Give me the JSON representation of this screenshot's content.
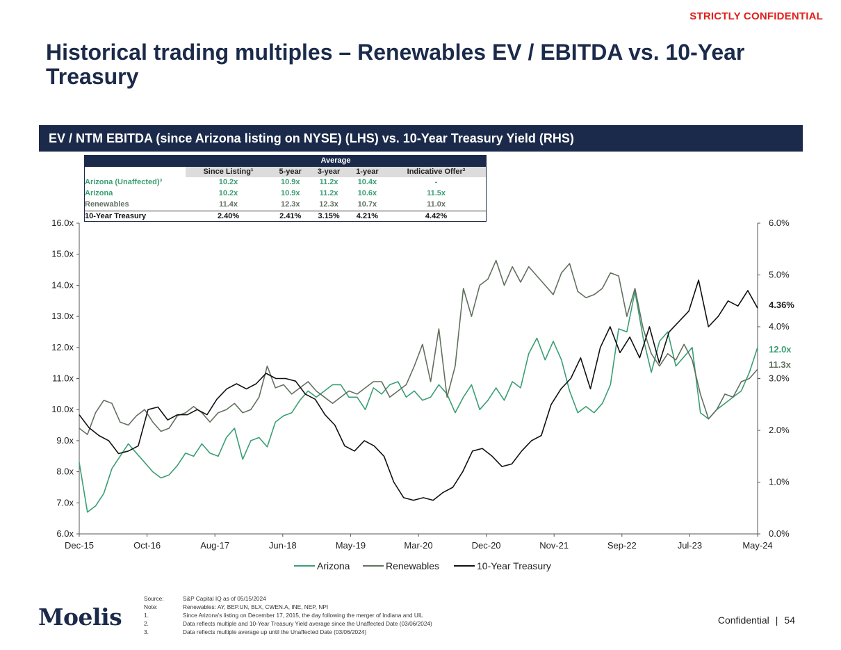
{
  "header": {
    "confidential": "STRICTLY CONFIDENTIAL",
    "title": "Historical trading multiples – Renewables EV / EBITDA vs. 10-Year Treasury"
  },
  "banner": "EV / NTM EBITDA (since Arizona listing on NYSE) (LHS) vs. 10-Year Treasury Yield (RHS)",
  "averages_table": {
    "group_header": "Average",
    "columns": [
      "Since Listing¹",
      "5-year",
      "3-year",
      "1-year",
      "Indicative Offer²"
    ],
    "rows": [
      {
        "label": "Arizona (Unaffected)³",
        "values": [
          "10.2x",
          "10.9x",
          "11.2x",
          "10.4x",
          "-"
        ]
      },
      {
        "label": "Arizona",
        "values": [
          "10.2x",
          "10.9x",
          "11.2x",
          "10.6x",
          "11.5x"
        ]
      },
      {
        "label": "Renewables",
        "values": [
          "11.4x",
          "12.3x",
          "12.3x",
          "10.7x",
          "11.0x"
        ]
      },
      {
        "label": "10-Year Treasury",
        "values": [
          "2.40%",
          "2.41%",
          "3.15%",
          "4.21%",
          "4.42%"
        ]
      }
    ]
  },
  "chart_data": {
    "type": "line",
    "x_range": [
      "2015-12-17",
      "2024-05-15"
    ],
    "x_tick_labels": [
      "Dec-15",
      "Oct-16",
      "Aug-17",
      "Jun-18",
      "May-19",
      "Mar-20",
      "Dec-20",
      "Nov-21",
      "Sep-22",
      "Jul-23",
      "May-24"
    ],
    "y_left": {
      "range": [
        6,
        16
      ],
      "ticks": [
        6,
        7,
        8,
        9,
        10,
        11,
        12,
        13,
        14,
        15,
        16
      ],
      "tick_labels": [
        "6.0x",
        "7.0x",
        "8.0x",
        "9.0x",
        "10.0x",
        "11.0x",
        "12.0x",
        "13.0x",
        "14.0x",
        "15.0x",
        "16.0x"
      ]
    },
    "y_right": {
      "range": [
        0,
        6
      ],
      "ticks": [
        0,
        1,
        2,
        3,
        4,
        5,
        6
      ],
      "tick_labels": [
        "0.0%",
        "1.0%",
        "2.0%",
        "3.0%",
        "4.0%",
        "5.0%",
        "6.0%"
      ]
    },
    "end_labels": {
      "treasury": "4.36%",
      "arizona": "12.0x",
      "renewables": "11.3x"
    },
    "legend_position": "bottom",
    "series": [
      {
        "name": "Arizona",
        "axis": "left",
        "color": "#3a9e73",
        "values": [
          8.3,
          6.7,
          6.9,
          7.3,
          8.1,
          8.5,
          8.9,
          8.6,
          8.3,
          8.0,
          7.8,
          7.9,
          8.2,
          8.6,
          8.5,
          8.9,
          8.6,
          8.5,
          9.1,
          9.4,
          8.4,
          9.0,
          9.1,
          8.8,
          9.6,
          9.8,
          9.9,
          10.3,
          10.6,
          10.4,
          10.6,
          10.8,
          10.8,
          10.4,
          10.4,
          10.0,
          10.7,
          10.5,
          10.8,
          10.9,
          10.4,
          10.6,
          10.3,
          10.4,
          10.8,
          10.5,
          9.9,
          10.4,
          10.8,
          10.0,
          10.3,
          10.7,
          10.3,
          10.9,
          10.7,
          11.8,
          12.3,
          11.6,
          12.2,
          11.6,
          10.6,
          9.9,
          10.1,
          9.9,
          10.2,
          10.8,
          12.6,
          12.5,
          13.8,
          12.3,
          11.2,
          12.2,
          12.5,
          11.4,
          11.7,
          12.0,
          9.9,
          9.7,
          10.0,
          10.2,
          10.4,
          10.6,
          11.2,
          12.0
        ]
      },
      {
        "name": "Renewables",
        "axis": "left",
        "color": "#62705f",
        "values": [
          9.4,
          9.2,
          9.9,
          10.3,
          10.2,
          9.6,
          9.5,
          9.8,
          10.0,
          9.6,
          9.3,
          9.4,
          9.8,
          9.9,
          10.1,
          9.9,
          9.6,
          9.9,
          10.0,
          10.2,
          9.9,
          10.0,
          10.4,
          11.4,
          10.7,
          10.8,
          10.5,
          10.7,
          10.9,
          10.6,
          10.4,
          10.2,
          10.4,
          10.6,
          10.5,
          10.7,
          10.9,
          10.9,
          10.4,
          10.6,
          10.8,
          11.4,
          12.1,
          10.9,
          12.6,
          10.4,
          11.4,
          13.9,
          13.0,
          14.0,
          14.2,
          14.8,
          14.0,
          14.6,
          14.1,
          14.6,
          14.3,
          14.0,
          13.7,
          14.4,
          14.7,
          13.8,
          13.6,
          13.7,
          13.9,
          14.4,
          14.3,
          13.0,
          13.9,
          12.6,
          11.8,
          11.4,
          11.8,
          11.6,
          12.1,
          11.6,
          10.5,
          9.7,
          10.0,
          10.5,
          10.4,
          10.9,
          11.0,
          11.3
        ]
      },
      {
        "name": "10-Year Treasury",
        "axis": "right",
        "color": "#111111",
        "values": [
          2.3,
          2.05,
          1.9,
          1.8,
          1.55,
          1.6,
          1.7,
          2.4,
          2.45,
          2.2,
          2.3,
          2.3,
          2.4,
          2.3,
          2.6,
          2.8,
          2.9,
          2.8,
          2.9,
          3.1,
          3.0,
          3.0,
          2.95,
          2.7,
          2.6,
          2.3,
          2.1,
          1.7,
          1.6,
          1.8,
          1.7,
          1.5,
          1.0,
          0.7,
          0.65,
          0.7,
          0.65,
          0.8,
          0.9,
          1.2,
          1.6,
          1.65,
          1.5,
          1.3,
          1.35,
          1.6,
          1.8,
          1.9,
          2.5,
          2.8,
          3.0,
          3.4,
          2.8,
          3.6,
          4.0,
          3.5,
          3.8,
          3.4,
          4.0,
          3.3,
          3.9,
          4.1,
          4.3,
          4.9,
          4.0,
          4.2,
          4.5,
          4.4,
          4.7,
          4.36
        ]
      }
    ]
  },
  "footnotes": [
    {
      "key": "Source:",
      "text": "S&P Capital IQ as of 05/15/2024"
    },
    {
      "key": "Note:",
      "text": "Renewables: AY, BEP.UN, BLX, CWEN.A, INE, NEP, NPI"
    },
    {
      "key": "1.",
      "text": "Since Arizona’s listing on December 17, 2015, the day following the merger of Indiana and UIL"
    },
    {
      "key": "2.",
      "text": "Data reflects multiple and 10-Year Treasury Yield average since the Unaffected Date (03/06/2024)"
    },
    {
      "key": "3.",
      "text": "Data reflects multiple average up until the Unaffected Date (03/06/2024)"
    }
  ],
  "footer": {
    "logo": "Moelis",
    "confidential": "Confidential",
    "separator": "|",
    "page": "54"
  }
}
